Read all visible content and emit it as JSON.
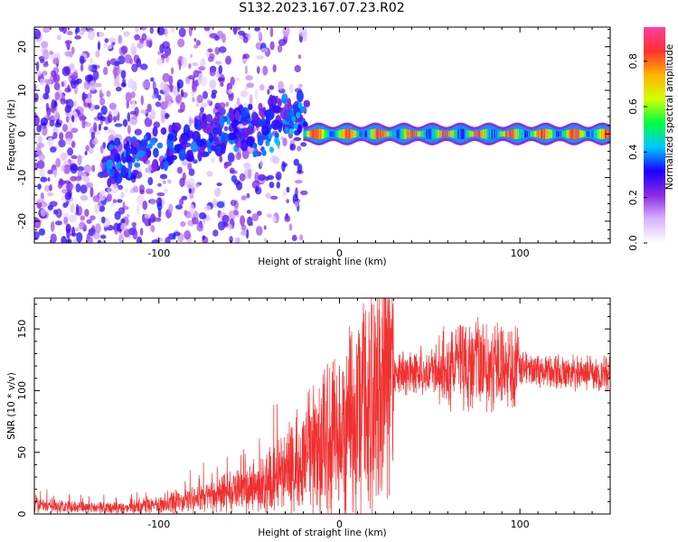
{
  "title": "S132.2023.167.07.23.R02",
  "chart_data": [
    {
      "type": "heatmap",
      "xlabel": "Height of straight line (km)",
      "ylabel": "Frequency (Hz)",
      "xlim": [
        -169,
        150
      ],
      "ylim": [
        -25,
        24.5
      ],
      "xticks": [
        -100,
        0,
        100
      ],
      "yticks": [
        -20,
        -10,
        0,
        10,
        20
      ],
      "colorbar": {
        "label": "Normalized spectral amplitude",
        "range": [
          0,
          0.95
        ],
        "ticks": [
          0.0,
          0.2,
          0.4,
          0.6,
          0.8
        ],
        "colors": [
          "#ffffff",
          "#d9b3ff",
          "#8a2be2",
          "#1a00ff",
          "#00c8ff",
          "#00ff40",
          "#d4ff00",
          "#ffb300",
          "#ff3030",
          "#ff40a0"
        ]
      },
      "features": [
        {
          "region": "x < -20 km",
          "pattern": "scattered broadband energy across all frequencies, amplitude 0.1-0.4"
        },
        {
          "region": "-130 to -20 km",
          "pattern": "band drifting from about -7 Hz up to +5 Hz"
        },
        {
          "region": "x > -20 km",
          "pattern": "narrow band centered at 0 Hz, amplitude 0.4-0.95"
        }
      ]
    },
    {
      "type": "line",
      "xlabel": "Height of straight line (km)",
      "ylabel": "SNR (10 * v/v)",
      "xlim": [
        -169,
        150
      ],
      "ylim": [
        0,
        175
      ],
      "xticks": [
        -100,
        0,
        100
      ],
      "yticks": [
        0,
        50,
        100,
        150
      ],
      "color": "#f03030",
      "x": [
        -169,
        -160,
        -140,
        -120,
        -100,
        -80,
        -60,
        -40,
        -30,
        -20,
        -10,
        0,
        10,
        20,
        30,
        40,
        60,
        70,
        80,
        90,
        100,
        120,
        150
      ],
      "y": [
        8,
        6,
        5,
        5,
        7,
        11,
        17,
        25,
        33,
        44,
        58,
        68,
        85,
        100,
        112,
        116,
        118,
        120,
        121,
        120,
        117,
        115,
        114
      ]
    }
  ]
}
